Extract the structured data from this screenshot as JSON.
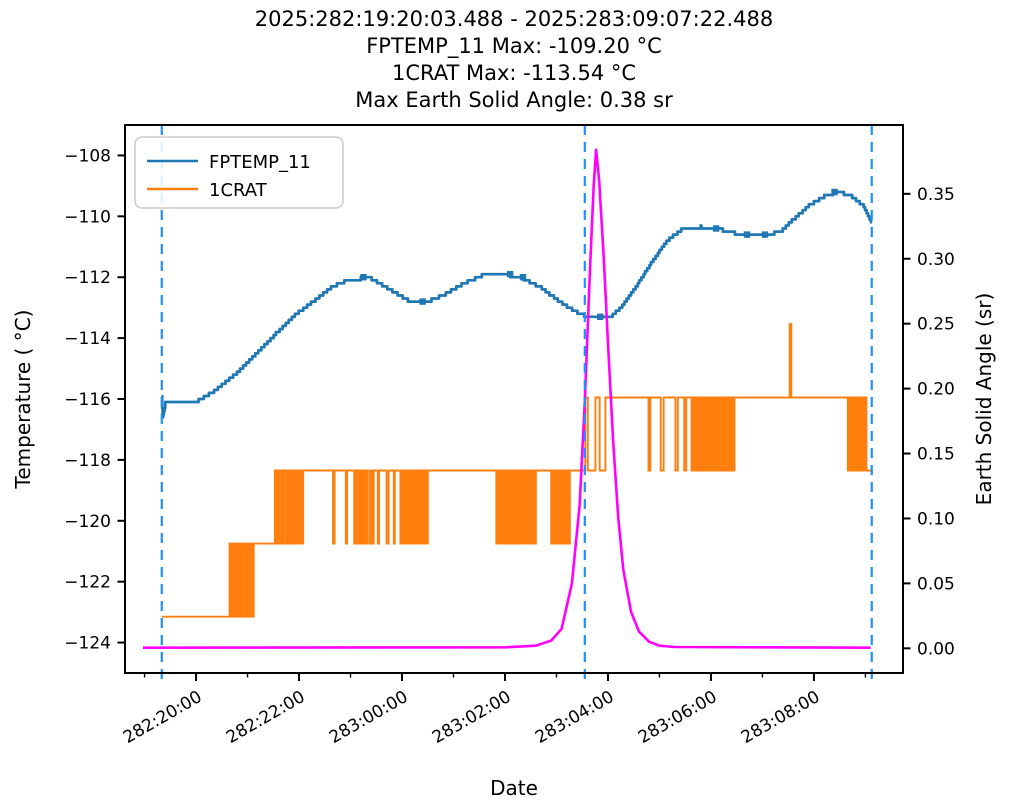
{
  "figure": {
    "title_lines": [
      "2025:282:19:20:03.488 - 2025:283:09:07:22.488",
      "FPTEMP_11 Max: -109.20 °C",
      "1CRAT Max: -113.54 °C",
      "Max Earth Solid Angle: 0.38 sr"
    ],
    "stats": {
      "fptemp_max_c": -109.2,
      "crat_max_c": -113.54,
      "max_earth_solid_angle_sr": 0.38,
      "start": "2025:282:19:20:03.488",
      "stop": "2025:283:09:07:22.488"
    }
  },
  "chart_data": {
    "type": "line",
    "xlabel": "Date",
    "ylabel_left": "Temperature ( °C)",
    "ylabel_right": "Earth Solid Angle (sr)",
    "x_unit_hours_from": "2025:282:00:00:00",
    "xlim": [
      18.62,
      33.73
    ],
    "ylim_left": [
      -125.0,
      -107.0
    ],
    "ylim_right": [
      -0.019,
      0.403
    ],
    "grid": false,
    "x_major_ticks": [
      {
        "t": 20,
        "label": "282:20:00"
      },
      {
        "t": 22,
        "label": "282:22:00"
      },
      {
        "t": 24,
        "label": "283:00:00"
      },
      {
        "t": 26,
        "label": "283:02:00"
      },
      {
        "t": 28,
        "label": "283:04:00"
      },
      {
        "t": 30,
        "label": "283:06:00"
      },
      {
        "t": 32,
        "label": "283:08:00"
      }
    ],
    "x_minor_ticks": [
      19,
      21,
      23,
      25,
      27,
      29,
      31,
      33
    ],
    "y_ticks_left": [
      {
        "v": -108,
        "label": "−108"
      },
      {
        "v": -110,
        "label": "−110"
      },
      {
        "v": -112,
        "label": "−112"
      },
      {
        "v": -114,
        "label": "−114"
      },
      {
        "v": -116,
        "label": "−116"
      },
      {
        "v": -118,
        "label": "−118"
      },
      {
        "v": -120,
        "label": "−120"
      },
      {
        "v": -122,
        "label": "−122"
      },
      {
        "v": -124,
        "label": "−124"
      }
    ],
    "y_ticks_right": [
      {
        "v": 0.0,
        "label": "0.00"
      },
      {
        "v": 0.05,
        "label": "0.05"
      },
      {
        "v": 0.1,
        "label": "0.10"
      },
      {
        "v": 0.15,
        "label": "0.15"
      },
      {
        "v": 0.2,
        "label": "0.20"
      },
      {
        "v": 0.25,
        "label": "0.25"
      },
      {
        "v": 0.3,
        "label": "0.30"
      },
      {
        "v": 0.35,
        "label": "0.35"
      }
    ],
    "vlines": {
      "color": "#1E90FF",
      "style": "dashed",
      "times": [
        19.334,
        27.55,
        33.123
      ]
    },
    "legend": {
      "position": "upper-left",
      "items": [
        {
          "label": "FPTEMP_11",
          "color": "#1f77b4"
        },
        {
          "label": "1CRAT",
          "color": "#ff7f0e"
        }
      ]
    },
    "series": [
      {
        "name": "FPTEMP_11",
        "axis": "left",
        "color": "#1f77b4",
        "style": "stepped",
        "quantize": 0.1,
        "points": [
          [
            19.334,
            -115.95
          ],
          [
            19.35,
            -116.6
          ],
          [
            19.4,
            -116.15
          ],
          [
            19.5,
            -116.1
          ],
          [
            20.05,
            -116.05
          ],
          [
            20.35,
            -115.75
          ],
          [
            20.75,
            -115.2
          ],
          [
            21.15,
            -114.55
          ],
          [
            21.55,
            -113.85
          ],
          [
            21.95,
            -113.2
          ],
          [
            22.35,
            -112.7
          ],
          [
            22.65,
            -112.3
          ],
          [
            22.95,
            -112.1
          ],
          [
            23.2,
            -112.05
          ],
          [
            23.35,
            -112.0
          ],
          [
            23.5,
            -112.15
          ],
          [
            23.8,
            -112.45
          ],
          [
            24.1,
            -112.75
          ],
          [
            24.5,
            -112.8
          ],
          [
            24.85,
            -112.55
          ],
          [
            25.2,
            -112.2
          ],
          [
            25.55,
            -111.95
          ],
          [
            25.9,
            -111.9
          ],
          [
            26.3,
            -112.0
          ],
          [
            26.7,
            -112.35
          ],
          [
            27.1,
            -112.85
          ],
          [
            27.45,
            -113.2
          ],
          [
            27.7,
            -113.35
          ],
          [
            28.05,
            -113.3
          ],
          [
            28.25,
            -113.0
          ],
          [
            28.55,
            -112.3
          ],
          [
            28.85,
            -111.5
          ],
          [
            29.15,
            -110.8
          ],
          [
            29.45,
            -110.4
          ],
          [
            29.8,
            -110.35
          ],
          [
            30.1,
            -110.4
          ],
          [
            30.45,
            -110.55
          ],
          [
            30.8,
            -110.6
          ],
          [
            31.1,
            -110.6
          ],
          [
            31.35,
            -110.5
          ],
          [
            31.6,
            -110.1
          ],
          [
            31.9,
            -109.65
          ],
          [
            32.2,
            -109.35
          ],
          [
            32.45,
            -109.2
          ],
          [
            32.7,
            -109.3
          ],
          [
            32.95,
            -109.65
          ],
          [
            33.123,
            -110.25
          ]
        ],
        "marker_ts": [
          23.25,
          24.4,
          26.1,
          26.35,
          27.85,
          30.1,
          30.7,
          31.05,
          32.4
        ]
      },
      {
        "name": "1CRAT",
        "axis": "left",
        "color": "#ff7f0e",
        "style": "telemetry-steps",
        "levels": [
          -123.15,
          -120.75,
          -118.35,
          -115.95
        ],
        "spike_max": {
          "t": 31.53,
          "value": -113.54
        },
        "segments": [
          {
            "mode": "flat",
            "t0": 19.334,
            "t1": 20.65,
            "level": -123.15
          },
          {
            "mode": "osc",
            "t0": 20.65,
            "t1": 21.12,
            "hi": -120.75,
            "lo": -123.15,
            "period": 0.05,
            "duty": 0.5
          },
          {
            "mode": "flat",
            "t0": 21.12,
            "t1": 21.53,
            "level": -120.75
          },
          {
            "mode": "osc",
            "t0": 21.53,
            "t1": 22.08,
            "hi": -118.35,
            "lo": -120.75,
            "period": 0.05,
            "duty": 0.55
          },
          {
            "mode": "flat",
            "t0": 22.08,
            "t1": 22.36,
            "level": -118.35
          },
          {
            "mode": "osc",
            "t0": 22.36,
            "t1": 23.05,
            "hi": -118.35,
            "lo": -120.75,
            "period": 0.3,
            "duty": 0.9
          },
          {
            "mode": "osc",
            "t0": 23.05,
            "t1": 23.45,
            "hi": -118.35,
            "lo": -120.75,
            "period": 0.06,
            "duty": 0.5
          },
          {
            "mode": "osc",
            "t0": 23.45,
            "t1": 23.95,
            "hi": -118.35,
            "lo": -120.75,
            "period": 0.14,
            "duty": 0.78
          },
          {
            "mode": "osc",
            "t0": 23.95,
            "t1": 24.5,
            "hi": -118.35,
            "lo": -120.75,
            "period": 0.05,
            "duty": 0.5
          },
          {
            "mode": "flat",
            "t0": 24.5,
            "t1": 25.8,
            "level": -118.35
          },
          {
            "mode": "osc",
            "t0": 25.8,
            "t1": 26.6,
            "hi": -118.35,
            "lo": -120.75,
            "period": 0.05,
            "duty": 0.5
          },
          {
            "mode": "flat",
            "t0": 26.6,
            "t1": 26.88,
            "level": -118.35
          },
          {
            "mode": "osc",
            "t0": 26.88,
            "t1": 27.26,
            "hi": -118.35,
            "lo": -120.75,
            "period": 0.05,
            "duty": 0.5
          },
          {
            "mode": "flat",
            "t0": 27.26,
            "t1": 27.56,
            "level": -118.35
          },
          {
            "mode": "osc",
            "t0": 27.56,
            "t1": 27.95,
            "hi": -115.95,
            "lo": -118.35,
            "period": 0.17,
            "duty": 0.4
          },
          {
            "mode": "flat",
            "t0": 27.95,
            "t1": 28.58,
            "level": -115.95
          },
          {
            "mode": "osc",
            "t0": 28.58,
            "t1": 29.65,
            "hi": -115.95,
            "lo": -118.35,
            "period": 0.2,
            "duty": 0.8
          },
          {
            "mode": "osc",
            "t0": 29.65,
            "t1": 30.48,
            "hi": -115.95,
            "lo": -118.35,
            "period": 0.05,
            "duty": 0.5
          },
          {
            "mode": "flat",
            "t0": 30.48,
            "t1": 31.51,
            "level": -115.95
          },
          {
            "mode": "spike",
            "t": 31.53,
            "value": -113.54,
            "width": 0.03
          },
          {
            "mode": "flat",
            "t0": 31.56,
            "t1": 32.63,
            "level": -115.95
          },
          {
            "mode": "osc",
            "t0": 32.63,
            "t1": 33.02,
            "hi": -115.95,
            "lo": -118.35,
            "period": 0.05,
            "duty": 0.5
          },
          {
            "mode": "flat",
            "t0": 33.02,
            "t1": 33.123,
            "level": -118.35
          }
        ]
      },
      {
        "name": "Earth Solid Angle",
        "axis": "right",
        "color": "#FF00FF",
        "style": "smooth",
        "points": [
          [
            18.97,
            0.0005
          ],
          [
            26.0,
            0.0008
          ],
          [
            26.6,
            0.002
          ],
          [
            26.9,
            0.006
          ],
          [
            27.1,
            0.015
          ],
          [
            27.3,
            0.05
          ],
          [
            27.45,
            0.11
          ],
          [
            27.55,
            0.19
          ],
          [
            27.65,
            0.29
          ],
          [
            27.72,
            0.355
          ],
          [
            27.77,
            0.384
          ],
          [
            27.83,
            0.36
          ],
          [
            27.92,
            0.3
          ],
          [
            28.0,
            0.235
          ],
          [
            28.1,
            0.16
          ],
          [
            28.2,
            0.1
          ],
          [
            28.3,
            0.06
          ],
          [
            28.45,
            0.028
          ],
          [
            28.6,
            0.013
          ],
          [
            28.8,
            0.005
          ],
          [
            29.0,
            0.002
          ],
          [
            29.3,
            0.001
          ],
          [
            33.1,
            0.0005
          ]
        ]
      }
    ]
  }
}
